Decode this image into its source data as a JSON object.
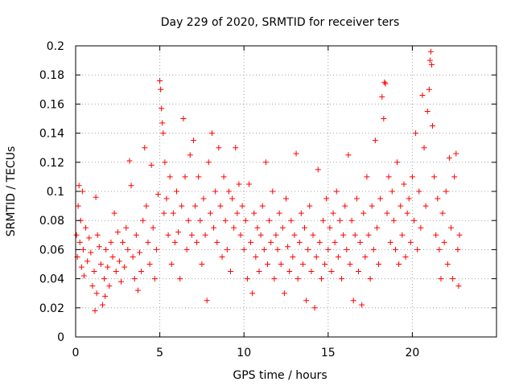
{
  "chart_data": {
    "type": "scatter",
    "title": "Day 229 of 2020, SRMTID for receiver ters",
    "xlabel": "GPS time / hours",
    "ylabel": "SRMTID / TECUs",
    "xlim": [
      0,
      25
    ],
    "ylim": [
      0,
      0.2
    ],
    "x_ticks": [
      0,
      5,
      10,
      15,
      20
    ],
    "x_tick_labels": [
      "0",
      "5",
      "10",
      "15",
      "20"
    ],
    "y_ticks": [
      0,
      0.02,
      0.04,
      0.06,
      0.08,
      0.1,
      0.12,
      0.14,
      0.16,
      0.18,
      0.2
    ],
    "y_tick_labels": [
      "0",
      "0.02",
      "0.04",
      "0.06",
      "0.08",
      "0.1",
      "0.12",
      "0.14",
      "0.16",
      "0.18",
      "0.2"
    ],
    "grid": true,
    "marker": "+",
    "marker_color": "#ff0000",
    "series": [
      {
        "points": [
          [
            0.05,
            0.07
          ],
          [
            0.1,
            0.055
          ],
          [
            0.15,
            0.09
          ],
          [
            0.2,
            0.104
          ],
          [
            0.25,
            0.065
          ],
          [
            0.3,
            0.08
          ],
          [
            0.35,
            0.048
          ],
          [
            0.4,
            0.1
          ],
          [
            0.45,
            0.06
          ],
          [
            0.5,
            0.042
          ],
          [
            0.6,
            0.075
          ],
          [
            0.7,
            0.052
          ],
          [
            0.8,
            0.068
          ],
          [
            0.9,
            0.058
          ],
          [
            1.0,
            0.035
          ],
          [
            1.1,
            0.045
          ],
          [
            1.15,
            0.018
          ],
          [
            1.2,
            0.096
          ],
          [
            1.25,
            0.03
          ],
          [
            1.3,
            0.07
          ],
          [
            1.4,
            0.062
          ],
          [
            1.5,
            0.05
          ],
          [
            1.6,
            0.022
          ],
          [
            1.7,
            0.04
          ],
          [
            1.75,
            0.028
          ],
          [
            1.8,
            0.06
          ],
          [
            1.9,
            0.048
          ],
          [
            2.0,
            0.035
          ],
          [
            2.1,
            0.065
          ],
          [
            2.2,
            0.055
          ],
          [
            2.3,
            0.085
          ],
          [
            2.4,
            0.045
          ],
          [
            2.5,
            0.072
          ],
          [
            2.6,
            0.052
          ],
          [
            2.7,
            0.038
          ],
          [
            2.8,
            0.065
          ],
          [
            2.9,
            0.048
          ],
          [
            3.0,
            0.075
          ],
          [
            3.1,
            0.06
          ],
          [
            3.2,
            0.121
          ],
          [
            3.3,
            0.104
          ],
          [
            3.4,
            0.055
          ],
          [
            3.5,
            0.04
          ],
          [
            3.6,
            0.07
          ],
          [
            3.7,
            0.032
          ],
          [
            3.8,
            0.058
          ],
          [
            3.9,
            0.045
          ],
          [
            4.0,
            0.08
          ],
          [
            4.1,
            0.13
          ],
          [
            4.2,
            0.09
          ],
          [
            4.3,
            0.065
          ],
          [
            4.4,
            0.05
          ],
          [
            4.5,
            0.118
          ],
          [
            4.6,
            0.075
          ],
          [
            4.7,
            0.04
          ],
          [
            4.8,
            0.06
          ],
          [
            4.9,
            0.098
          ],
          [
            5.0,
            0.176
          ],
          [
            5.05,
            0.17
          ],
          [
            5.1,
            0.157
          ],
          [
            5.15,
            0.147
          ],
          [
            5.2,
            0.14
          ],
          [
            5.25,
            0.085
          ],
          [
            5.3,
            0.12
          ],
          [
            5.4,
            0.095
          ],
          [
            5.5,
            0.07
          ],
          [
            5.6,
            0.11
          ],
          [
            5.7,
            0.05
          ],
          [
            5.8,
            0.085
          ],
          [
            5.9,
            0.065
          ],
          [
            6.0,
            0.1
          ],
          [
            6.1,
            0.072
          ],
          [
            6.2,
            0.04
          ],
          [
            6.3,
            0.09
          ],
          [
            6.4,
            0.15
          ],
          [
            6.5,
            0.11
          ],
          [
            6.6,
            0.06
          ],
          [
            6.7,
            0.08
          ],
          [
            6.8,
            0.125
          ],
          [
            6.9,
            0.07
          ],
          [
            7.0,
            0.135
          ],
          [
            7.1,
            0.09
          ],
          [
            7.2,
            0.065
          ],
          [
            7.3,
            0.11
          ],
          [
            7.4,
            0.08
          ],
          [
            7.5,
            0.05
          ],
          [
            7.6,
            0.095
          ],
          [
            7.7,
            0.07
          ],
          [
            7.8,
            0.025
          ],
          [
            7.9,
            0.12
          ],
          [
            8.0,
            0.085
          ],
          [
            8.1,
            0.14
          ],
          [
            8.2,
            0.075
          ],
          [
            8.3,
            0.1
          ],
          [
            8.4,
            0.065
          ],
          [
            8.5,
            0.13
          ],
          [
            8.6,
            0.09
          ],
          [
            8.7,
            0.055
          ],
          [
            8.8,
            0.11
          ],
          [
            8.9,
            0.08
          ],
          [
            9.0,
            0.06
          ],
          [
            9.1,
            0.1
          ],
          [
            9.2,
            0.045
          ],
          [
            9.3,
            0.095
          ],
          [
            9.4,
            0.075
          ],
          [
            9.5,
            0.13
          ],
          [
            9.6,
            0.085
          ],
          [
            9.7,
            0.105
          ],
          [
            9.8,
            0.07
          ],
          [
            9.9,
            0.09
          ],
          [
            10.0,
            0.06
          ],
          [
            10.1,
            0.08
          ],
          [
            10.2,
            0.04
          ],
          [
            10.3,
            0.105
          ],
          [
            10.4,
            0.065
          ],
          [
            10.5,
            0.03
          ],
          [
            10.6,
            0.085
          ],
          [
            10.7,
            0.055
          ],
          [
            10.8,
            0.075
          ],
          [
            10.9,
            0.045
          ],
          [
            11.0,
            0.07
          ],
          [
            11.1,
            0.09
          ],
          [
            11.2,
            0.06
          ],
          [
            11.3,
            0.12
          ],
          [
            11.4,
            0.05
          ],
          [
            11.5,
            0.08
          ],
          [
            11.6,
            0.065
          ],
          [
            11.7,
            0.1
          ],
          [
            11.8,
            0.04
          ],
          [
            11.9,
            0.07
          ],
          [
            12.0,
            0.06
          ],
          [
            12.1,
            0.085
          ],
          [
            12.2,
            0.05
          ],
          [
            12.3,
            0.075
          ],
          [
            12.4,
            0.03
          ],
          [
            12.5,
            0.095
          ],
          [
            12.6,
            0.062
          ],
          [
            12.7,
            0.045
          ],
          [
            12.8,
            0.08
          ],
          [
            12.9,
            0.055
          ],
          [
            13.0,
            0.07
          ],
          [
            13.1,
            0.126
          ],
          [
            13.2,
            0.04
          ],
          [
            13.3,
            0.065
          ],
          [
            13.4,
            0.085
          ],
          [
            13.5,
            0.05
          ],
          [
            13.6,
            0.075
          ],
          [
            13.7,
            0.025
          ],
          [
            13.8,
            0.06
          ],
          [
            13.9,
            0.09
          ],
          [
            14.0,
            0.045
          ],
          [
            14.1,
            0.07
          ],
          [
            14.2,
            0.02
          ],
          [
            14.3,
            0.055
          ],
          [
            14.4,
            0.115
          ],
          [
            14.5,
            0.065
          ],
          [
            14.6,
            0.04
          ],
          [
            14.7,
            0.08
          ],
          [
            14.8,
            0.05
          ],
          [
            14.9,
            0.095
          ],
          [
            15.0,
            0.06
          ],
          [
            15.1,
            0.075
          ],
          [
            15.2,
            0.045
          ],
          [
            15.3,
            0.085
          ],
          [
            15.4,
            0.065
          ],
          [
            15.5,
            0.1
          ],
          [
            15.6,
            0.055
          ],
          [
            15.7,
            0.08
          ],
          [
            15.8,
            0.04
          ],
          [
            15.9,
            0.07
          ],
          [
            16.0,
            0.09
          ],
          [
            16.1,
            0.06
          ],
          [
            16.2,
            0.125
          ],
          [
            16.3,
            0.05
          ],
          [
            16.4,
            0.08
          ],
          [
            16.5,
            0.025
          ],
          [
            16.6,
            0.07
          ],
          [
            16.7,
            0.095
          ],
          [
            16.8,
            0.045
          ],
          [
            16.9,
            0.065
          ],
          [
            17.0,
            0.022
          ],
          [
            17.1,
            0.085
          ],
          [
            17.2,
            0.055
          ],
          [
            17.3,
            0.11
          ],
          [
            17.4,
            0.07
          ],
          [
            17.5,
            0.04
          ],
          [
            17.6,
            0.09
          ],
          [
            17.7,
            0.06
          ],
          [
            17.8,
            0.135
          ],
          [
            17.9,
            0.075
          ],
          [
            18.0,
            0.05
          ],
          [
            18.1,
            0.095
          ],
          [
            18.2,
            0.165
          ],
          [
            18.3,
            0.15
          ],
          [
            18.35,
            0.175
          ],
          [
            18.4,
            0.174
          ],
          [
            18.5,
            0.085
          ],
          [
            18.6,
            0.11
          ],
          [
            18.7,
            0.065
          ],
          [
            18.8,
            0.1
          ],
          [
            18.9,
            0.08
          ],
          [
            19.0,
            0.06
          ],
          [
            19.1,
            0.12
          ],
          [
            19.2,
            0.05
          ],
          [
            19.3,
            0.09
          ],
          [
            19.4,
            0.07
          ],
          [
            19.5,
            0.105
          ],
          [
            19.6,
            0.055
          ],
          [
            19.7,
            0.085
          ],
          [
            19.8,
            0.095
          ],
          [
            19.9,
            0.065
          ],
          [
            20.0,
            0.11
          ],
          [
            20.1,
            0.08
          ],
          [
            20.2,
            0.14
          ],
          [
            20.3,
            0.06
          ],
          [
            20.4,
            0.1
          ],
          [
            20.5,
            0.075
          ],
          [
            20.6,
            0.166
          ],
          [
            20.7,
            0.13
          ],
          [
            20.8,
            0.09
          ],
          [
            20.9,
            0.155
          ],
          [
            21.0,
            0.17
          ],
          [
            21.05,
            0.19
          ],
          [
            21.1,
            0.196
          ],
          [
            21.15,
            0.187
          ],
          [
            21.2,
            0.145
          ],
          [
            21.3,
            0.11
          ],
          [
            21.4,
            0.07
          ],
          [
            21.5,
            0.095
          ],
          [
            21.6,
            0.06
          ],
          [
            21.7,
            0.04
          ],
          [
            21.8,
            0.085
          ],
          [
            21.9,
            0.065
          ],
          [
            22.0,
            0.1
          ],
          [
            22.1,
            0.05
          ],
          [
            22.2,
            0.123
          ],
          [
            22.3,
            0.075
          ],
          [
            22.4,
            0.04
          ],
          [
            22.5,
            0.11
          ],
          [
            22.6,
            0.126
          ],
          [
            22.7,
            0.06
          ],
          [
            22.75,
            0.035
          ],
          [
            22.8,
            0.07
          ]
        ]
      }
    ]
  }
}
